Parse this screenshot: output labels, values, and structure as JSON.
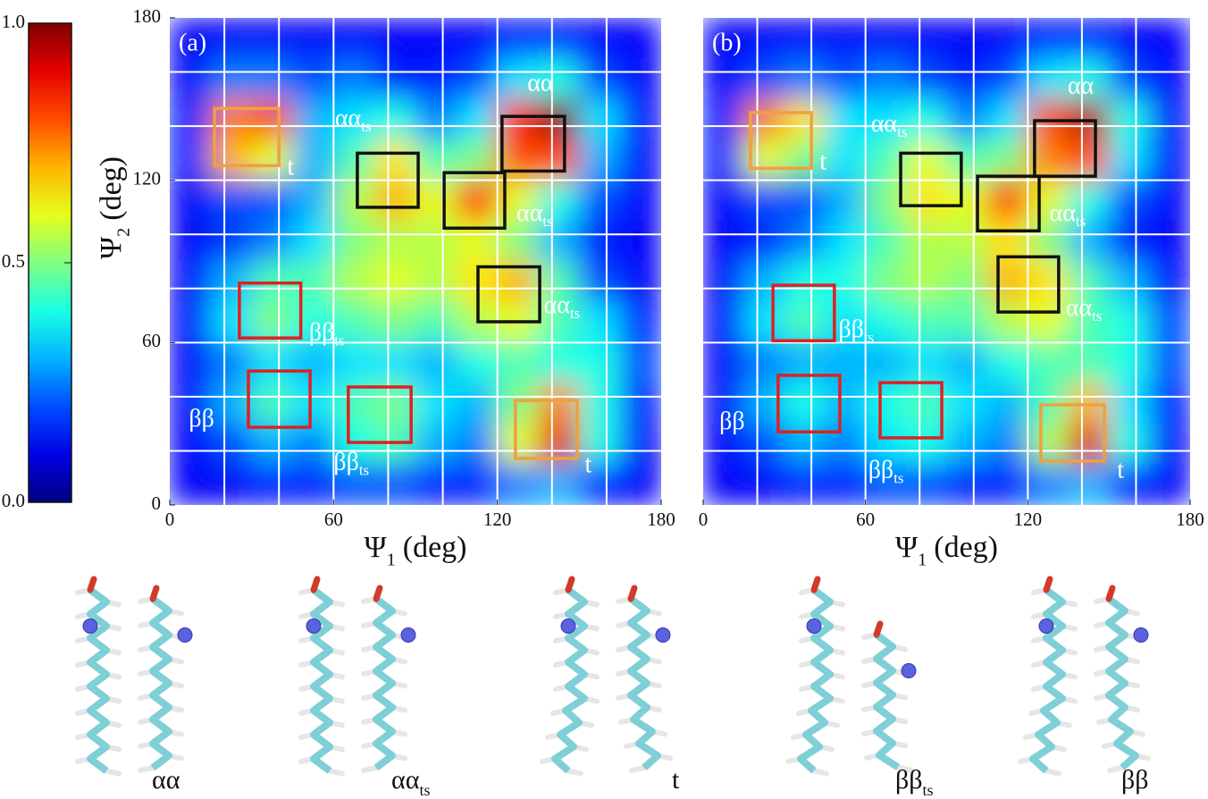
{
  "chart_data": [
    {
      "type": "heatmap",
      "label": "(a)",
      "colormap": "jet",
      "zlim": [
        0,
        1
      ],
      "xlabel": {
        "symbol": "Ψ",
        "sub": "1",
        "unit": "(deg)"
      },
      "ylabel": {
        "symbol": "Ψ",
        "sub": "2",
        "unit": "(deg)"
      },
      "xlim": [
        0,
        180
      ],
      "ylim": [
        0,
        180
      ],
      "xticks": [
        0,
        60,
        120,
        180
      ],
      "yticks": [
        0,
        60,
        120,
        180
      ],
      "xgrid": [
        20,
        40,
        60,
        80,
        100,
        120,
        140,
        160
      ],
      "ygrid": [
        20,
        40,
        60,
        80,
        100,
        120,
        140,
        160
      ],
      "z": [
        [
          0.12,
          0.12,
          0.12,
          0.12,
          0.12,
          0.12,
          0.12,
          0.12,
          0.15,
          0.15,
          0.12,
          0.12
        ],
        [
          0.12,
          0.25,
          0.25,
          0.2,
          0.25,
          0.15,
          0.15,
          0.2,
          0.35,
          0.4,
          0.2,
          0.12
        ],
        [
          0.15,
          0.75,
          0.8,
          0.3,
          0.35,
          0.4,
          0.25,
          0.35,
          0.85,
          1.0,
          0.35,
          0.12
        ],
        [
          0.15,
          0.7,
          0.6,
          0.3,
          0.45,
          0.65,
          0.45,
          0.5,
          0.8,
          0.8,
          0.3,
          0.12
        ],
        [
          0.12,
          0.2,
          0.2,
          0.3,
          0.55,
          0.7,
          0.6,
          0.85,
          0.6,
          0.4,
          0.2,
          0.12
        ],
        [
          0.12,
          0.18,
          0.25,
          0.35,
          0.5,
          0.55,
          0.55,
          0.6,
          0.5,
          0.3,
          0.15,
          0.12
        ],
        [
          0.12,
          0.3,
          0.45,
          0.45,
          0.55,
          0.6,
          0.55,
          0.65,
          0.7,
          0.45,
          0.2,
          0.12
        ],
        [
          0.12,
          0.35,
          0.5,
          0.4,
          0.45,
          0.5,
          0.45,
          0.55,
          0.6,
          0.45,
          0.35,
          0.15
        ],
        [
          0.12,
          0.25,
          0.35,
          0.3,
          0.35,
          0.35,
          0.3,
          0.4,
          0.45,
          0.4,
          0.4,
          0.2
        ],
        [
          0.12,
          0.3,
          0.45,
          0.35,
          0.45,
          0.5,
          0.35,
          0.3,
          0.5,
          0.75,
          0.4,
          0.15
        ],
        [
          0.12,
          0.2,
          0.3,
          0.25,
          0.4,
          0.45,
          0.3,
          0.25,
          0.6,
          0.9,
          0.4,
          0.12
        ],
        [
          0.12,
          0.12,
          0.15,
          0.15,
          0.2,
          0.2,
          0.15,
          0.15,
          0.25,
          0.3,
          0.15,
          0.12
        ]
      ],
      "boxes": [
        {
          "x": [
            16.4,
            40
          ],
          "y": [
            125.4,
            146.5
          ],
          "color": "#f0a040"
        },
        {
          "x": [
            68.7,
            91
          ],
          "y": [
            110,
            130
          ],
          "color": "#111111"
        },
        {
          "x": [
            100.5,
            122.7
          ],
          "y": [
            102.3,
            122.8
          ],
          "color": "#111111"
        },
        {
          "x": [
            121.7,
            144.6
          ],
          "y": [
            123.4,
            143.6
          ],
          "color": "#111111"
        },
        {
          "x": [
            112.9,
            135.5
          ],
          "y": [
            67.7,
            88
          ],
          "color": "#111111"
        },
        {
          "x": [
            25.5,
            48
          ],
          "y": [
            61.7,
            82
          ],
          "color": "#e02020"
        },
        {
          "x": [
            28.8,
            51.4
          ],
          "y": [
            28.7,
            49.5
          ],
          "color": "#e02020"
        },
        {
          "x": [
            65.4,
            88.4
          ],
          "y": [
            23.1,
            43.6
          ],
          "color": "#e02020"
        },
        {
          "x": [
            126.6,
            149.2
          ],
          "y": [
            17.2,
            38.6
          ],
          "color": "#f0a040"
        }
      ],
      "annotations": [
        {
          "x": 131,
          "y": 155,
          "text": "αα"
        },
        {
          "x": 60.5,
          "y": 142,
          "text": "αα",
          "sub": "ts"
        },
        {
          "x": 43,
          "y": 124,
          "text": "t"
        },
        {
          "x": 127,
          "y": 107,
          "text": "αα",
          "sub": "ts"
        },
        {
          "x": 137,
          "y": 73,
          "text": "αα",
          "sub": "ts"
        },
        {
          "x": 51,
          "y": 63,
          "text": "ββ",
          "sub": "ts"
        },
        {
          "x": 7,
          "y": 31,
          "text": "ββ"
        },
        {
          "x": 60,
          "y": 15,
          "text": "ββ",
          "sub": "ts"
        },
        {
          "x": 152,
          "y": 14,
          "text": "t"
        }
      ]
    },
    {
      "type": "heatmap",
      "label": "(b)",
      "colormap": "jet",
      "zlim": [
        0,
        1
      ],
      "xlabel": {
        "symbol": "Ψ",
        "sub": "1",
        "unit": "(deg)"
      },
      "xlim": [
        0,
        180
      ],
      "ylim": [
        0,
        180
      ],
      "xticks": [
        0,
        60,
        120,
        180
      ],
      "xgrid": [
        20,
        40,
        60,
        80,
        100,
        120,
        140,
        160
      ],
      "ygrid": [
        20,
        40,
        60,
        80,
        100,
        120,
        140,
        160
      ],
      "z": [
        [
          0.12,
          0.12,
          0.12,
          0.12,
          0.12,
          0.12,
          0.12,
          0.12,
          0.15,
          0.15,
          0.12,
          0.12
        ],
        [
          0.12,
          0.2,
          0.25,
          0.2,
          0.25,
          0.2,
          0.15,
          0.2,
          0.35,
          0.4,
          0.2,
          0.12
        ],
        [
          0.15,
          0.75,
          0.65,
          0.35,
          0.35,
          0.4,
          0.25,
          0.35,
          0.8,
          0.95,
          0.4,
          0.12
        ],
        [
          0.15,
          0.6,
          0.5,
          0.35,
          0.45,
          0.6,
          0.45,
          0.5,
          0.75,
          0.8,
          0.35,
          0.12
        ],
        [
          0.12,
          0.2,
          0.2,
          0.3,
          0.5,
          0.65,
          0.6,
          0.85,
          0.6,
          0.4,
          0.2,
          0.12
        ],
        [
          0.12,
          0.15,
          0.25,
          0.35,
          0.45,
          0.55,
          0.55,
          0.65,
          0.5,
          0.3,
          0.15,
          0.12
        ],
        [
          0.12,
          0.3,
          0.4,
          0.4,
          0.5,
          0.55,
          0.5,
          0.7,
          0.65,
          0.45,
          0.3,
          0.12
        ],
        [
          0.12,
          0.35,
          0.45,
          0.35,
          0.4,
          0.45,
          0.45,
          0.55,
          0.6,
          0.45,
          0.4,
          0.2
        ],
        [
          0.12,
          0.25,
          0.3,
          0.3,
          0.3,
          0.35,
          0.3,
          0.4,
          0.45,
          0.45,
          0.4,
          0.2
        ],
        [
          0.12,
          0.3,
          0.4,
          0.3,
          0.4,
          0.45,
          0.35,
          0.3,
          0.45,
          0.7,
          0.35,
          0.15
        ],
        [
          0.12,
          0.2,
          0.3,
          0.25,
          0.35,
          0.4,
          0.3,
          0.25,
          0.55,
          0.9,
          0.4,
          0.12
        ],
        [
          0.12,
          0.12,
          0.15,
          0.15,
          0.2,
          0.2,
          0.15,
          0.15,
          0.25,
          0.3,
          0.15,
          0.12
        ]
      ],
      "boxes": [
        {
          "x": [
            17.5,
            40
          ],
          "y": [
            124.4,
            145
          ],
          "color": "#f0a040"
        },
        {
          "x": [
            73,
            95.4
          ],
          "y": [
            110.6,
            130
          ],
          "color": "#111111"
        },
        {
          "x": [
            101.4,
            124.2
          ],
          "y": [
            101.3,
            121.5
          ],
          "color": "#111111"
        },
        {
          "x": [
            122.5,
            145
          ],
          "y": [
            121.5,
            142
          ],
          "color": "#111111"
        },
        {
          "x": [
            109,
            131.4
          ],
          "y": [
            71.3,
            91.7
          ],
          "color": "#111111"
        },
        {
          "x": [
            25.8,
            48.5
          ],
          "y": [
            60.7,
            81.2
          ],
          "color": "#e02020"
        },
        {
          "x": [
            27.7,
            50.5
          ],
          "y": [
            27,
            47.9
          ],
          "color": "#e02020"
        },
        {
          "x": [
            65.4,
            88.2
          ],
          "y": [
            24.8,
            45.2
          ],
          "color": "#e02020"
        },
        {
          "x": [
            124.8,
            148.3
          ],
          "y": [
            16.2,
            37
          ],
          "color": "#f0a040"
        }
      ],
      "annotations": [
        {
          "x": 134.7,
          "y": 154,
          "text": "αα"
        },
        {
          "x": 62,
          "y": 140,
          "text": "αα",
          "sub": "ts"
        },
        {
          "x": 43,
          "y": 126,
          "text": "t"
        },
        {
          "x": 128,
          "y": 107,
          "text": "αα",
          "sub": "ts"
        },
        {
          "x": 134,
          "y": 72,
          "text": "αα",
          "sub": "ts"
        },
        {
          "x": 50,
          "y": 64,
          "text": "ββ",
          "sub": "ts"
        },
        {
          "x": 6,
          "y": 30,
          "text": "ββ"
        },
        {
          "x": 61,
          "y": 12,
          "text": "ββ",
          "sub": "ts"
        },
        {
          "x": 153,
          "y": 12,
          "text": "t"
        }
      ]
    }
  ],
  "colorbar": {
    "lim": [
      0,
      1
    ],
    "ticks": [
      {
        "value": 0,
        "label": "0.0"
      },
      {
        "value": 0.5,
        "label": "0.5"
      },
      {
        "value": 1,
        "label": "1.0"
      }
    ]
  },
  "molecules": [
    {
      "text": "αα"
    },
    {
      "text": "αα",
      "sub": "ts"
    },
    {
      "text": "t"
    },
    {
      "text": "ββ",
      "sub": "ts"
    },
    {
      "text": "ββ"
    }
  ]
}
